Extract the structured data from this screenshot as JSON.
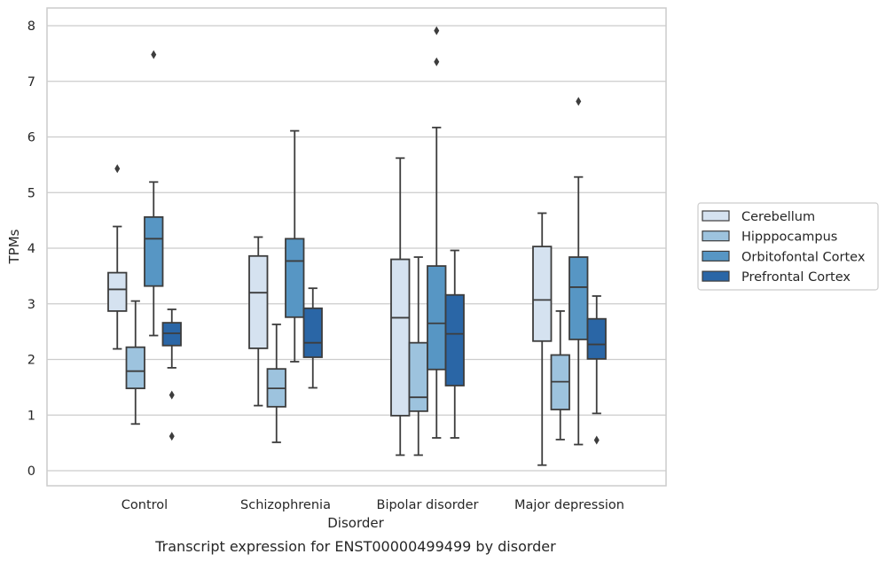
{
  "chart_data": {
    "type": "box",
    "caption": "Transcript expression for ENST00000499499 by disorder",
    "xlabel": "Disorder",
    "ylabel": "TPMs",
    "ylim": [
      -0.27,
      8.3
    ],
    "yticks": [
      0,
      1,
      2,
      3,
      4,
      5,
      6,
      7,
      8
    ],
    "grid": true,
    "legend_position": "right",
    "categories": [
      "Control",
      "Schizophrenia",
      "Bipolar disorder",
      "Major depression"
    ],
    "series": [
      {
        "name": "Cerebellum",
        "color": "#d5e2f0",
        "boxes": [
          {
            "whisker_low": 2.19,
            "q1": 2.87,
            "median": 3.26,
            "q3": 3.56,
            "whisker_high": 4.39,
            "outliers": [
              5.43
            ]
          },
          {
            "whisker_low": 1.17,
            "q1": 2.2,
            "median": 3.2,
            "q3": 3.86,
            "whisker_high": 4.2,
            "outliers": []
          },
          {
            "whisker_low": 0.28,
            "q1": 0.99,
            "median": 2.75,
            "q3": 3.8,
            "whisker_high": 5.62,
            "outliers": []
          },
          {
            "whisker_low": 0.1,
            "q1": 2.33,
            "median": 3.07,
            "q3": 4.03,
            "whisker_high": 4.63,
            "outliers": []
          }
        ]
      },
      {
        "name": "Hipppocampus",
        "color": "#9dc3de",
        "boxes": [
          {
            "whisker_low": 0.84,
            "q1": 1.48,
            "median": 1.79,
            "q3": 2.22,
            "whisker_high": 3.05,
            "outliers": []
          },
          {
            "whisker_low": 0.51,
            "q1": 1.15,
            "median": 1.48,
            "q3": 1.83,
            "whisker_high": 2.63,
            "outliers": []
          },
          {
            "whisker_low": 0.28,
            "q1": 1.07,
            "median": 1.32,
            "q3": 2.3,
            "whisker_high": 3.84,
            "outliers": []
          },
          {
            "whisker_low": 0.56,
            "q1": 1.1,
            "median": 1.6,
            "q3": 2.08,
            "whisker_high": 2.87,
            "outliers": []
          }
        ]
      },
      {
        "name": "Orbitofontal Cortex",
        "color": "#5796c4",
        "boxes": [
          {
            "whisker_low": 2.43,
            "q1": 3.32,
            "median": 4.17,
            "q3": 4.56,
            "whisker_high": 5.19,
            "outliers": [
              7.48
            ]
          },
          {
            "whisker_low": 1.96,
            "q1": 2.76,
            "median": 3.77,
            "q3": 4.17,
            "whisker_high": 6.11,
            "outliers": []
          },
          {
            "whisker_low": 0.59,
            "q1": 1.82,
            "median": 2.65,
            "q3": 3.68,
            "whisker_high": 6.17,
            "outliers": [
              7.35,
              7.91
            ]
          },
          {
            "whisker_low": 0.47,
            "q1": 2.36,
            "median": 3.3,
            "q3": 3.84,
            "whisker_high": 5.28,
            "outliers": [
              6.64
            ]
          }
        ]
      },
      {
        "name": "Prefrontal Cortex",
        "color": "#2a66a6",
        "boxes": [
          {
            "whisker_low": 1.85,
            "q1": 2.25,
            "median": 2.47,
            "q3": 2.66,
            "whisker_high": 2.9,
            "outliers": [
              1.36,
              0.62
            ]
          },
          {
            "whisker_low": 1.49,
            "q1": 2.04,
            "median": 2.3,
            "q3": 2.92,
            "whisker_high": 3.28,
            "outliers": []
          },
          {
            "whisker_low": 0.59,
            "q1": 1.53,
            "median": 2.46,
            "q3": 3.16,
            "whisker_high": 3.96,
            "outliers": []
          },
          {
            "whisker_low": 1.03,
            "q1": 2.01,
            "median": 2.27,
            "q3": 2.73,
            "whisker_high": 3.14,
            "outliers": [
              0.55
            ]
          }
        ]
      }
    ]
  },
  "colors": {
    "grid": "#cccccc",
    "frame": "#cccccc",
    "box_edge": "#3d3d3d",
    "text": "#262626"
  }
}
